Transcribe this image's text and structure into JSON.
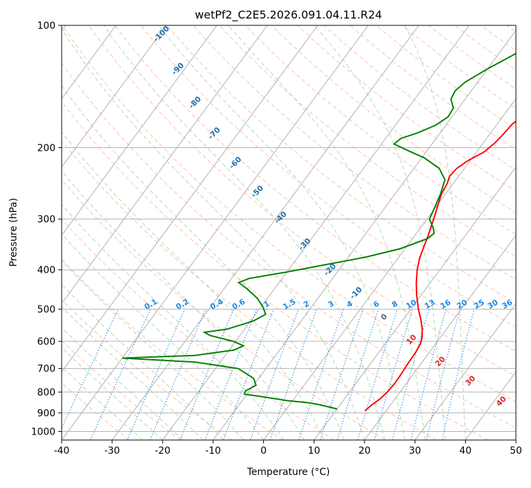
{
  "chart_data": {
    "type": "line",
    "subtype": "skew-T log-p diagram",
    "title": "wetPf2_C2E5.2026.091.04.11.R24",
    "xlabel": "Temperature (°C)",
    "ylabel": "Pressure (hPa)",
    "xlim": [
      -40,
      50
    ],
    "ylim": [
      1050,
      100
    ],
    "y_scale": "log",
    "grid": true,
    "xticks": [
      -40,
      -30,
      -20,
      -10,
      0,
      10,
      20,
      30,
      40,
      50
    ],
    "yticks": [
      100,
      200,
      300,
      400,
      500,
      600,
      700,
      800,
      900,
      1000
    ],
    "colors": {
      "temperature": "#ff0000",
      "dewpoint": "#008000",
      "isotherm": "#b0b0b0",
      "dry_adiabat": "#ff8a65",
      "moist_adiabat": "#9fcf9f",
      "mixing_ratio": "#1e88e5",
      "grid": "#b0b0b0",
      "frame": "#000000"
    },
    "series": [
      {
        "name": "",
        "role": "temperature",
        "color": "#ff0000",
        "points": [
          {
            "t": 15.8,
            "p": 890
          },
          {
            "t": 16.3,
            "p": 860
          },
          {
            "t": 17.1,
            "p": 830
          },
          {
            "t": 17.5,
            "p": 800
          },
          {
            "t": 17.7,
            "p": 760
          },
          {
            "t": 17.6,
            "p": 720
          },
          {
            "t": 17.4,
            "p": 680
          },
          {
            "t": 17.3,
            "p": 640
          },
          {
            "t": 17.0,
            "p": 610
          },
          {
            "t": 16.5,
            "p": 590
          },
          {
            "t": 15.2,
            "p": 560
          },
          {
            "t": 13.5,
            "p": 530
          },
          {
            "t": 11.5,
            "p": 500
          },
          {
            "t": 9.0,
            "p": 460
          },
          {
            "t": 7.2,
            "p": 430
          },
          {
            "t": 5.5,
            "p": 400
          },
          {
            "t": 4.3,
            "p": 375
          },
          {
            "t": 3.4,
            "p": 350
          },
          {
            "t": 2.7,
            "p": 330
          },
          {
            "t": 1.8,
            "p": 310
          },
          {
            "t": 1.1,
            "p": 295
          },
          {
            "t": 0.0,
            "p": 275
          },
          {
            "t": -0.8,
            "p": 260
          },
          {
            "t": -1.2,
            "p": 245
          },
          {
            "t": -1.8,
            "p": 235
          },
          {
            "t": -1.5,
            "p": 225
          },
          {
            "t": -0.4,
            "p": 215
          },
          {
            "t": 1.5,
            "p": 205
          },
          {
            "t": 2.3,
            "p": 195
          },
          {
            "t": 2.7,
            "p": 185
          },
          {
            "t": 3.0,
            "p": 175
          },
          {
            "t": 3.8,
            "p": 168
          },
          {
            "t": 5.3,
            "p": 160
          },
          {
            "t": 7.0,
            "p": 150
          },
          {
            "t": 8.2,
            "p": 140
          },
          {
            "t": 9.4,
            "p": 130
          },
          {
            "t": 10.6,
            "p": 120
          },
          {
            "t": 11.3,
            "p": 112
          },
          {
            "t": 11.9,
            "p": 106
          },
          {
            "t": 12.9,
            "p": 100
          }
        ]
      },
      {
        "name": "",
        "role": "dewpoint",
        "color": "#008000",
        "points": [
          {
            "t": 10.0,
            "p": 880
          },
          {
            "t": 6.0,
            "p": 860
          },
          {
            "t": 3.5,
            "p": 850
          },
          {
            "t": -1.0,
            "p": 840
          },
          {
            "t": -7.0,
            "p": 820
          },
          {
            "t": -10.5,
            "p": 810
          },
          {
            "t": -10.8,
            "p": 795
          },
          {
            "t": -9.5,
            "p": 770
          },
          {
            "t": -11.0,
            "p": 740
          },
          {
            "t": -15.5,
            "p": 700
          },
          {
            "t": -25.0,
            "p": 675
          },
          {
            "t": -40.0,
            "p": 660
          },
          {
            "t": -26.0,
            "p": 650
          },
          {
            "t": -19.0,
            "p": 630
          },
          {
            "t": -17.8,
            "p": 615
          },
          {
            "t": -20.5,
            "p": 600
          },
          {
            "t": -26.0,
            "p": 580
          },
          {
            "t": -27.5,
            "p": 570
          },
          {
            "t": -23.5,
            "p": 560
          },
          {
            "t": -19.5,
            "p": 535
          },
          {
            "t": -18.0,
            "p": 515
          },
          {
            "t": -19.5,
            "p": 495
          },
          {
            "t": -22.0,
            "p": 470
          },
          {
            "t": -25.5,
            "p": 445
          },
          {
            "t": -28.0,
            "p": 430
          },
          {
            "t": -26.5,
            "p": 420
          },
          {
            "t": -20.0,
            "p": 405
          },
          {
            "t": -12.0,
            "p": 385
          },
          {
            "t": -6.5,
            "p": 372
          },
          {
            "t": -1.0,
            "p": 355
          },
          {
            "t": 3.0,
            "p": 335
          },
          {
            "t": 3.5,
            "p": 325
          },
          {
            "t": 2.5,
            "p": 315
          },
          {
            "t": 0.5,
            "p": 300
          },
          {
            "t": -0.2,
            "p": 280
          },
          {
            "t": -1.0,
            "p": 260
          },
          {
            "t": -2.2,
            "p": 240
          },
          {
            "t": -5.0,
            "p": 225
          },
          {
            "t": -9.5,
            "p": 212
          },
          {
            "t": -14.0,
            "p": 203
          },
          {
            "t": -17.5,
            "p": 196
          },
          {
            "t": -17.0,
            "p": 190
          },
          {
            "t": -14.5,
            "p": 184
          },
          {
            "t": -12.0,
            "p": 176
          },
          {
            "t": -10.8,
            "p": 168
          },
          {
            "t": -11.0,
            "p": 160
          },
          {
            "t": -12.8,
            "p": 152
          },
          {
            "t": -13.2,
            "p": 145
          },
          {
            "t": -12.5,
            "p": 138
          },
          {
            "t": -10.0,
            "p": 128
          },
          {
            "t": -6.5,
            "p": 117
          },
          {
            "t": -3.8,
            "p": 108
          },
          {
            "t": -2.3,
            "p": 100
          }
        ]
      }
    ],
    "isotherm_labels": [
      "-100",
      "-90",
      "-80",
      "-70",
      "-60",
      "-50",
      "-40",
      "-30",
      "-20",
      "-10",
      "0",
      "10",
      "20",
      "30",
      "40"
    ],
    "mixing_ratio_labels": [
      "0.1",
      "0.2",
      "0.4",
      "0.6",
      "1",
      "1.5",
      "2",
      "3",
      "4",
      "6",
      "8",
      "10",
      "13",
      "16",
      "20",
      "25",
      "30",
      "36"
    ]
  }
}
